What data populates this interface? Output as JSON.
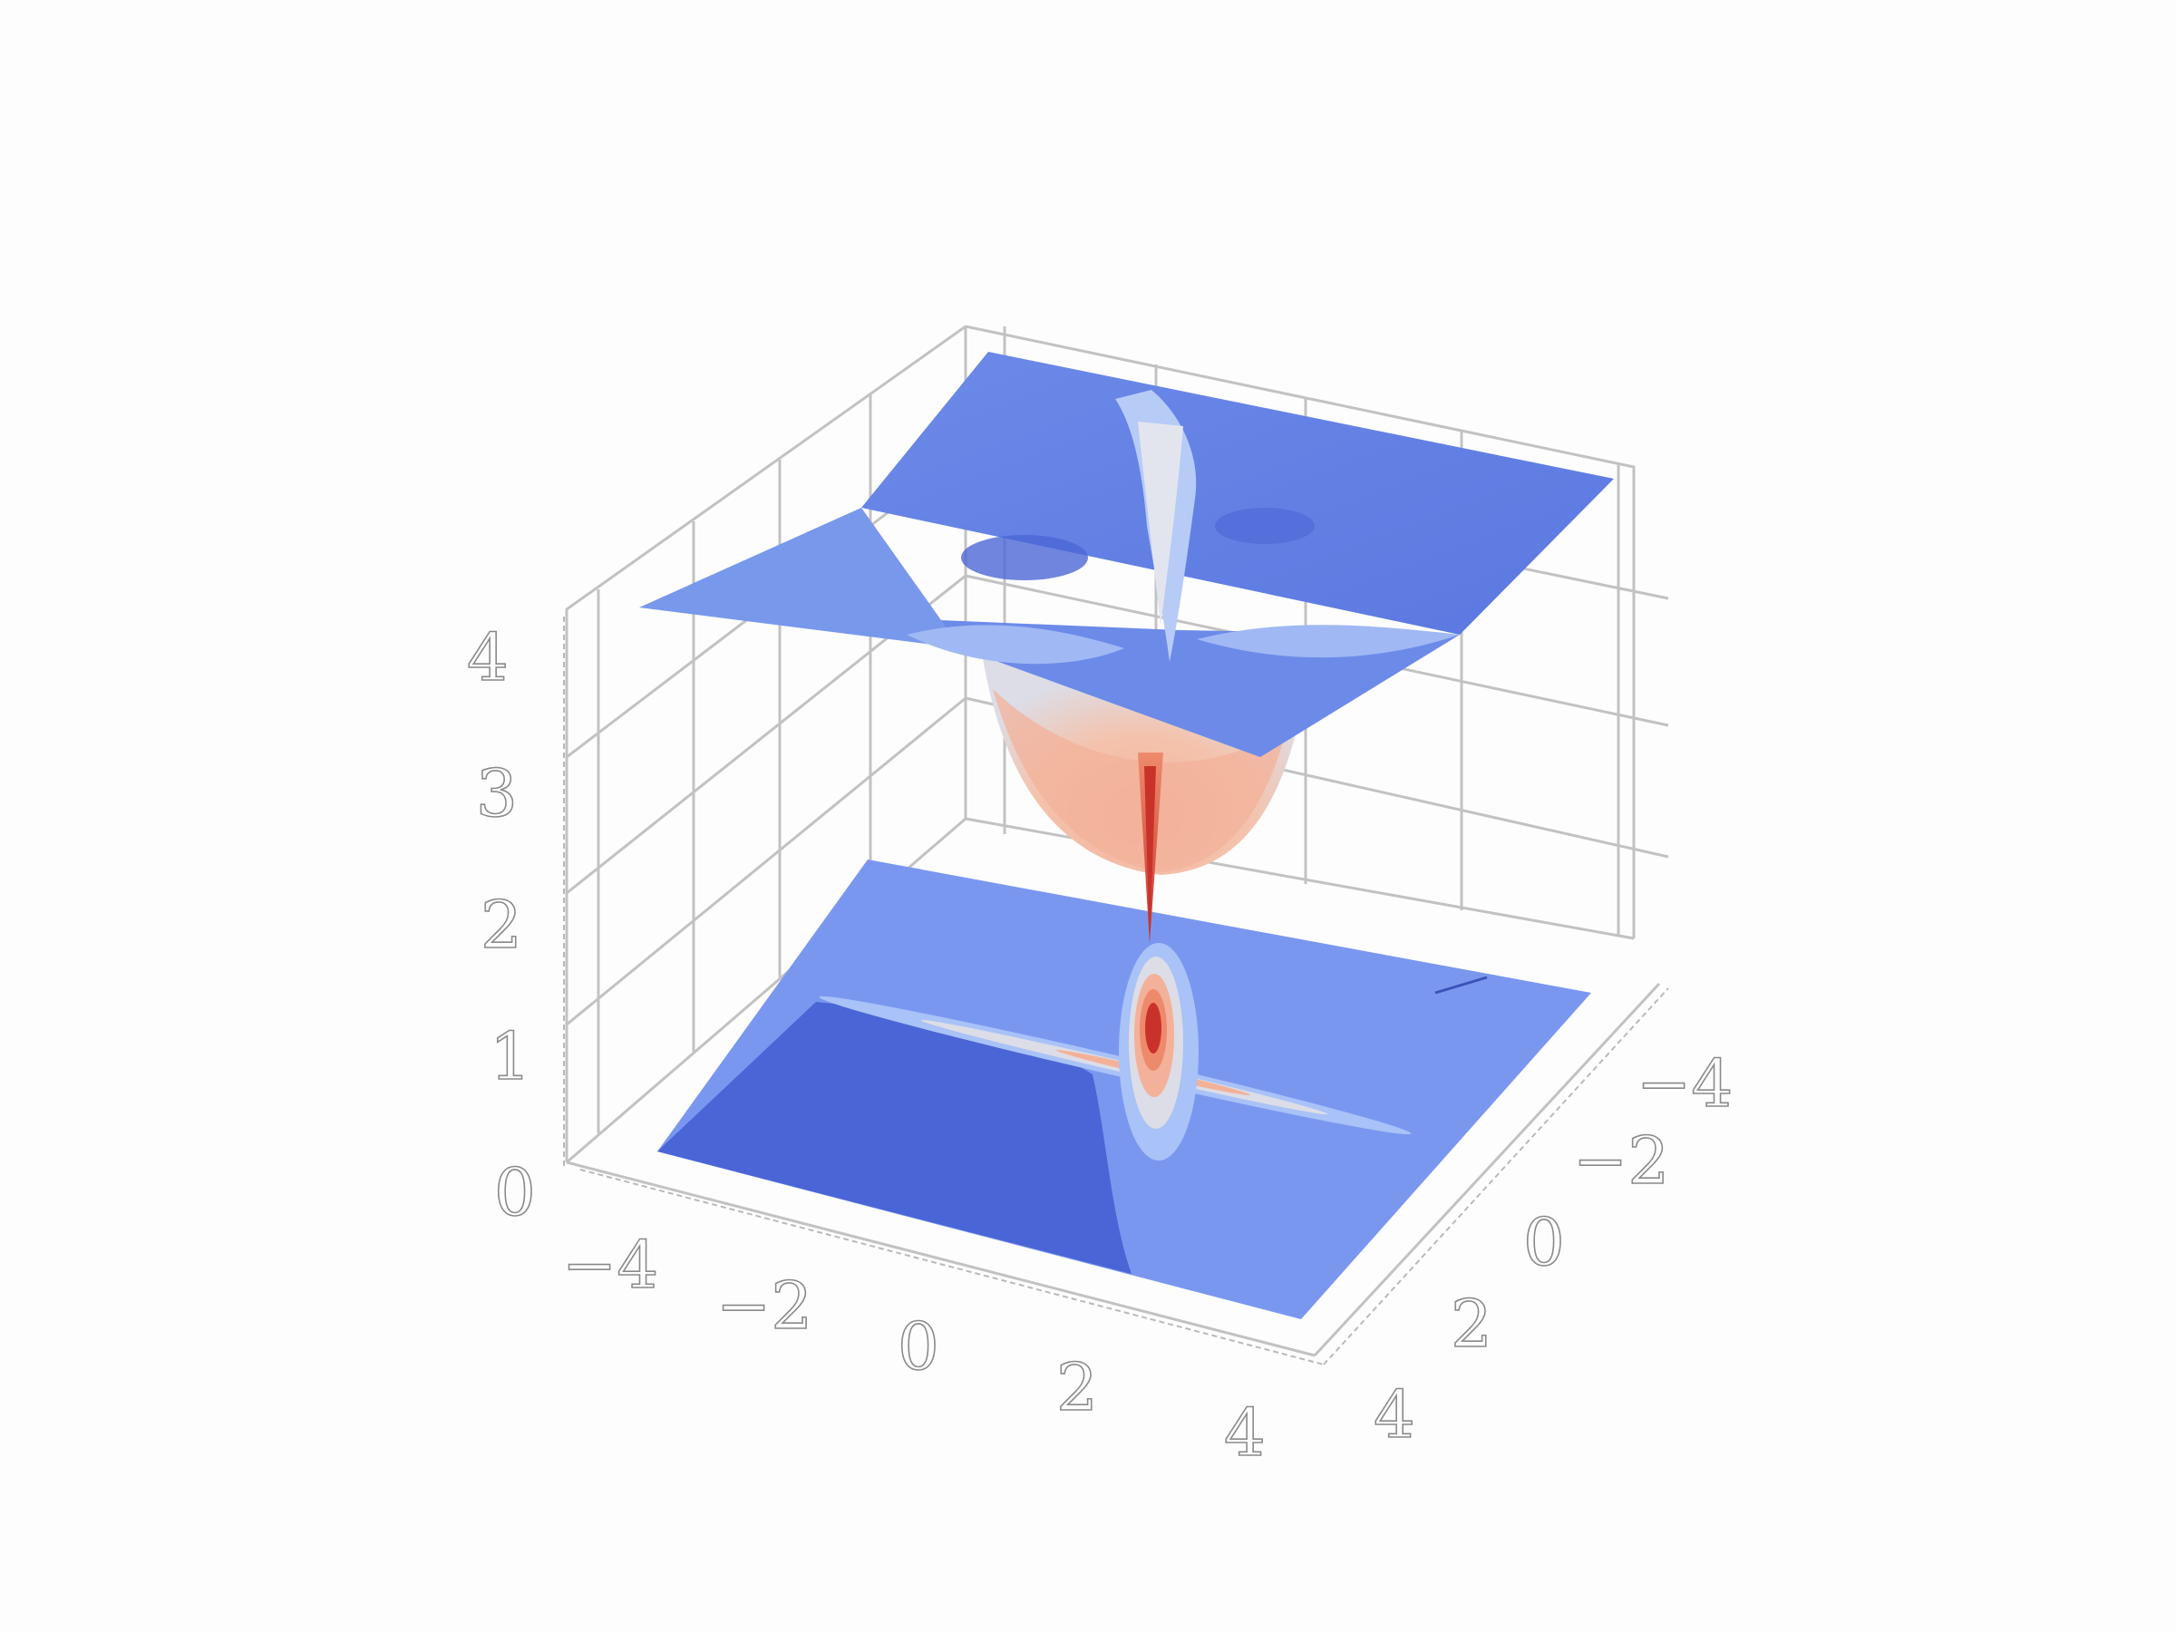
{
  "chart_data": {
    "type": "surface3d",
    "title": "",
    "xlabel": "",
    "ylabel": "",
    "zlabel": "",
    "x_ticks": [
      "−4",
      "−2",
      "0",
      "2",
      "4"
    ],
    "y_ticks": [
      "−4",
      "−2",
      "0",
      "2",
      "4"
    ],
    "z_ticks": [
      "0",
      "1",
      "2",
      "3",
      "4"
    ],
    "x_range": [
      -4,
      4
    ],
    "y_range": [
      -4,
      4
    ],
    "z_range": [
      0,
      4
    ],
    "grid": true,
    "colormap": "coolwarm",
    "surface": {
      "plateau_z": 3.9,
      "well_center": [
        0,
        0
      ],
      "well_min_z": 2.1,
      "spike_min_z": 1.0,
      "description_levels": [
        2.1,
        3.9
      ]
    },
    "contour_floor": {
      "z": 0,
      "levels": [
        1.0,
        1.5,
        2.0,
        2.5,
        3.0,
        3.5,
        3.9
      ]
    },
    "colors": {
      "deep_blue": "#4a65d6",
      "mid_blue": "#7a97f0",
      "light_blue": "#a9c2f7",
      "pale": "#dcdde6",
      "salmon": "#f3b19a",
      "orange": "#ee8a6c",
      "red": "#c9322a"
    }
  }
}
